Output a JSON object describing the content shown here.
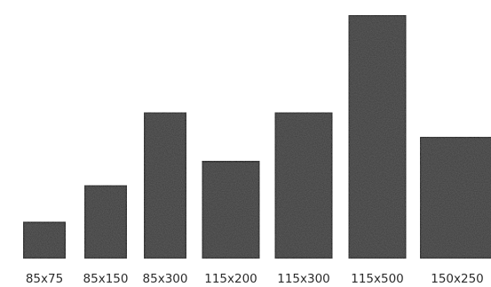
{
  "chart_data": {
    "type": "bar",
    "categories": [
      "85x75",
      "85x150",
      "85x300",
      "115x200",
      "115x300",
      "115x500",
      "150x250"
    ],
    "widths_cm": [
      85,
      85,
      85,
      115,
      115,
      115,
      150
    ],
    "heights_cm": [
      75,
      150,
      300,
      200,
      300,
      500,
      250
    ],
    "colors": {
      "fill": "#3a3a3a",
      "stroke": "#0b0b0b",
      "label": "#2b2b2b"
    }
  }
}
